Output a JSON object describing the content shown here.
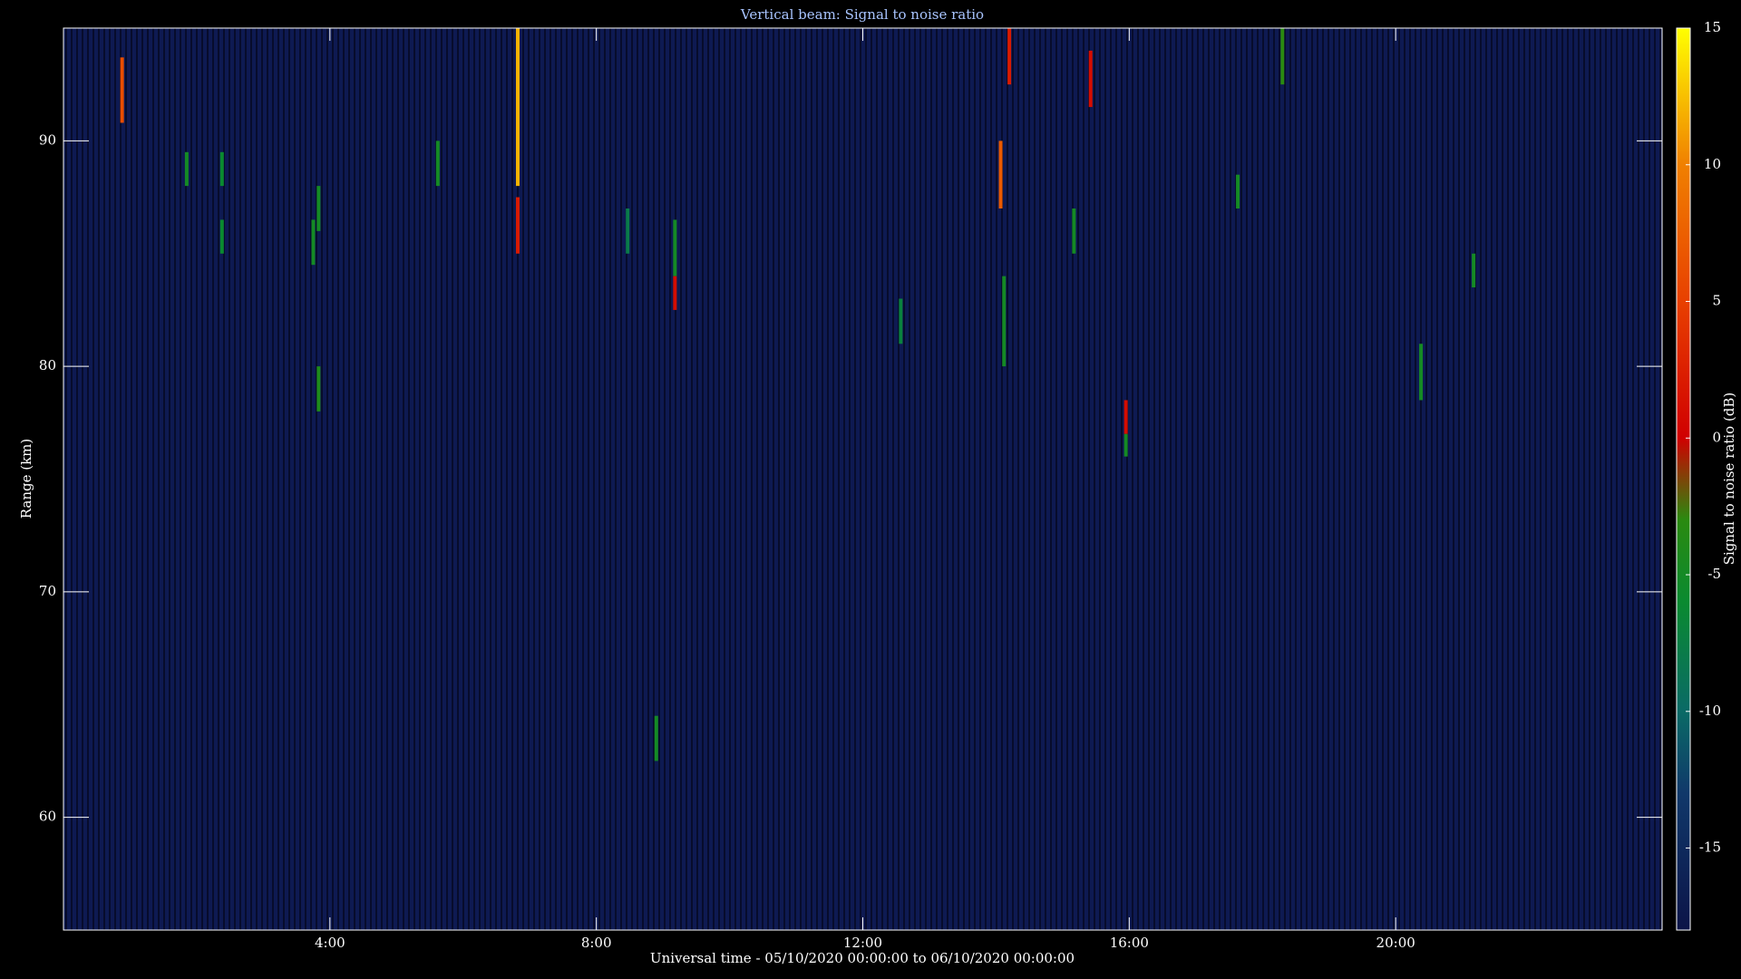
{
  "chart_data": {
    "type": "heatmap",
    "title": "Vertical beam: Signal to noise ratio",
    "x_label": "Universal time - 05/10/2020 00:00:00 to 06/10/2020 00:00:00",
    "y_label": "Range (km)",
    "colorbar_label": "Signal to noise ratio (dB)",
    "xlim": [
      0,
      24
    ],
    "xticks": [
      {
        "value": 4,
        "label": "4:00"
      },
      {
        "value": 8,
        "label": "8:00"
      },
      {
        "value": 12,
        "label": "12:00"
      },
      {
        "value": 16,
        "label": "16:00"
      },
      {
        "value": 20,
        "label": "20:00"
      }
    ],
    "ylim": [
      55,
      95
    ],
    "yticks": [
      60,
      70,
      80,
      90
    ],
    "zlim": [
      -18,
      15
    ],
    "zticks": [
      15,
      10,
      5,
      0,
      -5,
      -10,
      -15
    ],
    "colormap": [
      {
        "value": -18,
        "color": "#0c1448"
      },
      {
        "value": -13,
        "color": "#10386a"
      },
      {
        "value": -10,
        "color": "#0a6a66"
      },
      {
        "value": -6,
        "color": "#0a8a30"
      },
      {
        "value": -3,
        "color": "#2a8a10"
      },
      {
        "value": 0,
        "color": "#d00000"
      },
      {
        "value": 5,
        "color": "#e84000"
      },
      {
        "value": 10,
        "color": "#f08000"
      },
      {
        "value": 15,
        "color": "#ffff00"
      }
    ],
    "cells": [
      {
        "time": 0.88,
        "range": [
          90.8,
          93.7
        ],
        "snr": 6
      },
      {
        "time": 1.85,
        "range": [
          88,
          89.5
        ],
        "snr": -5
      },
      {
        "time": 2.38,
        "range": [
          88,
          89.5
        ],
        "snr": -6
      },
      {
        "time": 2.38,
        "range": [
          85,
          86.5
        ],
        "snr": -6
      },
      {
        "time": 3.75,
        "range": [
          84.5,
          86.5
        ],
        "snr": -5
      },
      {
        "time": 3.83,
        "range": [
          86,
          88
        ],
        "snr": -5
      },
      {
        "time": 3.83,
        "range": [
          78,
          80
        ],
        "snr": -4
      },
      {
        "time": 5.62,
        "range": [
          88,
          90
        ],
        "snr": -5
      },
      {
        "time": 6.82,
        "range": [
          88,
          95
        ],
        "snr": 12
      },
      {
        "time": 6.82,
        "range": [
          85,
          87.5
        ],
        "snr": 2
      },
      {
        "time": 8.47,
        "range": [
          85,
          87
        ],
        "snr": -8
      },
      {
        "time": 9.18,
        "range": [
          84,
          86.5
        ],
        "snr": -5
      },
      {
        "time": 9.18,
        "range": [
          82.5,
          84
        ],
        "snr": 1
      },
      {
        "time": 8.9,
        "range": [
          62.5,
          64.5
        ],
        "snr": -5
      },
      {
        "time": 12.57,
        "range": [
          81,
          83
        ],
        "snr": -7
      },
      {
        "time": 14.07,
        "range": [
          87,
          90
        ],
        "snr": 7
      },
      {
        "time": 14.12,
        "range": [
          80,
          84
        ],
        "snr": -5
      },
      {
        "time": 14.2,
        "range": [
          92.5,
          95
        ],
        "snr": 2
      },
      {
        "time": 15.17,
        "range": [
          85,
          87
        ],
        "snr": -5
      },
      {
        "time": 15.42,
        "range": [
          91.5,
          94
        ],
        "snr": 1
      },
      {
        "time": 15.95,
        "range": [
          77,
          78.5
        ],
        "snr": 1
      },
      {
        "time": 15.95,
        "range": [
          76,
          77
        ],
        "snr": -5
      },
      {
        "time": 17.63,
        "range": [
          87,
          88.5
        ],
        "snr": -5
      },
      {
        "time": 18.3,
        "range": [
          92.5,
          95
        ],
        "snr": -3
      },
      {
        "time": 20.38,
        "range": [
          78.5,
          81
        ],
        "snr": -5
      },
      {
        "time": 21.17,
        "range": [
          83.5,
          85
        ],
        "snr": -5
      }
    ]
  }
}
